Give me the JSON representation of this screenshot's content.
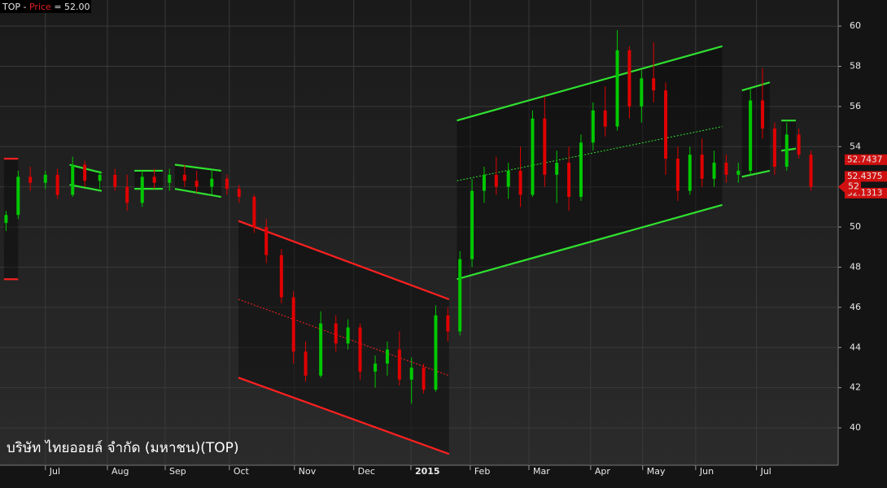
{
  "chart_data": {
    "type": "candlestick",
    "legend_text": [
      "TOP - ",
      "Price",
      " = 52.00"
    ],
    "title": "บริษัท ไทยออยล์ จำกัด (มหาชน)(TOP)",
    "x": [
      2,
      6,
      10,
      15,
      19,
      24,
      28,
      33,
      38,
      42,
      47,
      51,
      56,
      61,
      65,
      70,
      75,
      79,
      84,
      88,
      93,
      97,
      101,
      106,
      111,
      115,
      119,
      124,
      128,
      132,
      136,
      140,
      144,
      148,
      152,
      156,
      160,
      164,
      168,
      172,
      176,
      180,
      184,
      188,
      192,
      196,
      200,
      204,
      208,
      212,
      216,
      220,
      224,
      228,
      232,
      236,
      240,
      244,
      248,
      252,
      256,
      260,
      264,
      268
    ],
    "open": [
      50.2,
      50.6,
      52.5,
      52.2,
      52.6,
      51.6,
      53.1,
      52.3,
      52.6,
      52.0,
      51.2,
      52.5,
      52.2,
      52.6,
      52.3,
      52.0,
      52.4,
      51.9,
      51.5,
      50.0,
      48.6,
      46.5,
      43.8,
      42.6,
      45.2,
      44.2,
      45.0,
      42.8,
      43.2,
      43.9,
      42.4,
      43.0,
      41.9,
      45.6,
      44.8,
      48.4,
      51.8,
      52.6,
      52.0,
      52.8,
      51.6,
      55.4,
      52.6,
      53.2,
      51.5,
      54.2,
      55.8,
      55.0,
      58.8,
      56.0,
      57.4,
      56.8,
      53.4,
      51.8,
      53.6,
      52.4,
      53.2,
      52.6,
      52.8,
      56.3,
      54.9,
      53.0,
      54.6,
      53.6
    ],
    "high": [
      50.8,
      52.8,
      53.0,
      52.8,
      52.9,
      53.5,
      53.3,
      52.8,
      52.9,
      52.6,
      52.8,
      52.9,
      52.9,
      53.1,
      52.8,
      52.8,
      52.6,
      52.1,
      51.6,
      50.4,
      48.9,
      46.8,
      44.3,
      45.8,
      45.6,
      45.4,
      45.2,
      43.6,
      44.3,
      44.8,
      43.5,
      43.2,
      46.1,
      46.0,
      48.8,
      52.4,
      53.0,
      53.5,
      53.2,
      54.0,
      55.8,
      56.5,
      53.8,
      54.0,
      54.6,
      56.2,
      57.0,
      59.8,
      59.0,
      57.8,
      59.2,
      57.2,
      54.0,
      54.0,
      54.4,
      53.8,
      53.6,
      53.2,
      56.9,
      57.9,
      55.2,
      55.2,
      54.9,
      53.8
    ],
    "low": [
      49.8,
      50.4,
      51.8,
      51.9,
      51.4,
      51.5,
      52.0,
      51.9,
      51.8,
      50.8,
      51.0,
      51.9,
      51.8,
      52.0,
      51.7,
      51.6,
      51.6,
      51.2,
      49.7,
      48.2,
      46.2,
      43.2,
      42.3,
      42.5,
      43.8,
      43.9,
      42.4,
      42.0,
      42.6,
      42.1,
      41.2,
      41.7,
      41.8,
      44.3,
      44.6,
      48.0,
      51.2,
      51.6,
      51.4,
      51.0,
      51.5,
      52.0,
      51.2,
      50.8,
      51.3,
      53.8,
      54.5,
      54.8,
      55.4,
      55.2,
      56.2,
      52.6,
      51.3,
      51.6,
      52.0,
      52.0,
      52.2,
      52.2,
      52.6,
      54.4,
      52.6,
      52.8,
      53.4,
      51.8
    ],
    "close": [
      50.6,
      52.5,
      52.2,
      52.6,
      51.6,
      53.1,
      52.3,
      52.6,
      52.0,
      51.2,
      52.5,
      52.2,
      52.6,
      52.3,
      52.0,
      52.4,
      51.9,
      51.5,
      50.0,
      48.6,
      46.5,
      43.8,
      42.6,
      45.2,
      44.2,
      45.0,
      42.8,
      43.2,
      43.9,
      42.4,
      43.0,
      41.9,
      45.6,
      44.8,
      48.4,
      51.8,
      52.6,
      52.0,
      52.8,
      51.6,
      55.4,
      52.6,
      53.2,
      51.5,
      54.2,
      55.8,
      55.0,
      58.8,
      56.0,
      57.4,
      56.8,
      53.4,
      51.8,
      53.6,
      52.4,
      53.2,
      52.6,
      52.8,
      56.3,
      54.9,
      53.0,
      54.6,
      53.6,
      52.0
    ],
    "up_color": "#00c800",
    "down_color": "#e00000",
    "channels": [
      {
        "x": [
          1.3,
          6
        ],
        "upper": [
          53.4,
          53.4
        ],
        "lower": [
          47.4,
          47.4
        ],
        "color": "#ff2020"
      },
      {
        "x": [
          78.8,
          148.4
        ],
        "upper": [
          50.3,
          46.4
        ],
        "mid": [
          46.4,
          42.6
        ],
        "lower": [
          42.5,
          38.7
        ],
        "color": "#ff2020"
      },
      {
        "x": [
          151,
          238.7
        ],
        "upper": [
          55.3,
          59.0
        ],
        "mid": [
          52.3,
          55.0
        ],
        "lower": [
          47.4,
          51.1
        ],
        "color": "#30e030"
      },
      {
        "x": [
          23,
          33.6
        ],
        "upper": [
          53.1,
          52.7
        ],
        "lower": [
          52.1,
          51.8
        ],
        "color": "#30e030"
      },
      {
        "x": [
          44.4,
          53.8
        ],
        "upper": [
          52.8,
          52.8
        ],
        "lower": [
          51.9,
          51.9
        ],
        "color": "#30e030"
      },
      {
        "x": [
          57.8,
          73.1
        ],
        "upper": [
          53.1,
          52.8
        ],
        "lower": [
          51.9,
          51.5
        ],
        "color": "#30e030"
      },
      {
        "x": [
          245.2,
          254.4
        ],
        "upper": [
          56.8,
          57.2
        ],
        "lower": [
          52.5,
          52.8
        ],
        "color": "#30e030"
      },
      {
        "x": [
          258.2,
          263
        ],
        "upper": [
          55.3,
          55.3
        ],
        "lower": [
          53.8,
          53.9
        ],
        "color": "#30e030"
      }
    ],
    "xlim": [
      0,
      277
    ],
    "xticks": [
      {
        "value": 15,
        "label": "Jul"
      },
      {
        "value": 35.5,
        "label": "Aug"
      },
      {
        "value": 54.6,
        "label": "Sep"
      },
      {
        "value": 75.8,
        "label": "Oct"
      },
      {
        "value": 97.3,
        "label": "Nov"
      },
      {
        "value": 116.9,
        "label": "Dec"
      },
      {
        "value": 135.8,
        "label": "2015"
      },
      {
        "value": 155.4,
        "label": "Feb"
      },
      {
        "value": 174.8,
        "label": "Mar"
      },
      {
        "value": 195.2,
        "label": "Apr"
      },
      {
        "value": 212.4,
        "label": "May"
      },
      {
        "value": 229.9,
        "label": "Jun"
      },
      {
        "value": 250,
        "label": "Jul"
      }
    ],
    "ylim": [
      38.14,
      61.3
    ],
    "yticks": [
      40,
      42,
      44,
      46,
      48,
      50,
      52,
      54,
      56,
      58,
      60
    ],
    "markers": [
      52.7437,
      52.4375,
      52.1313
    ],
    "last_price": 52,
    "grid": true
  }
}
